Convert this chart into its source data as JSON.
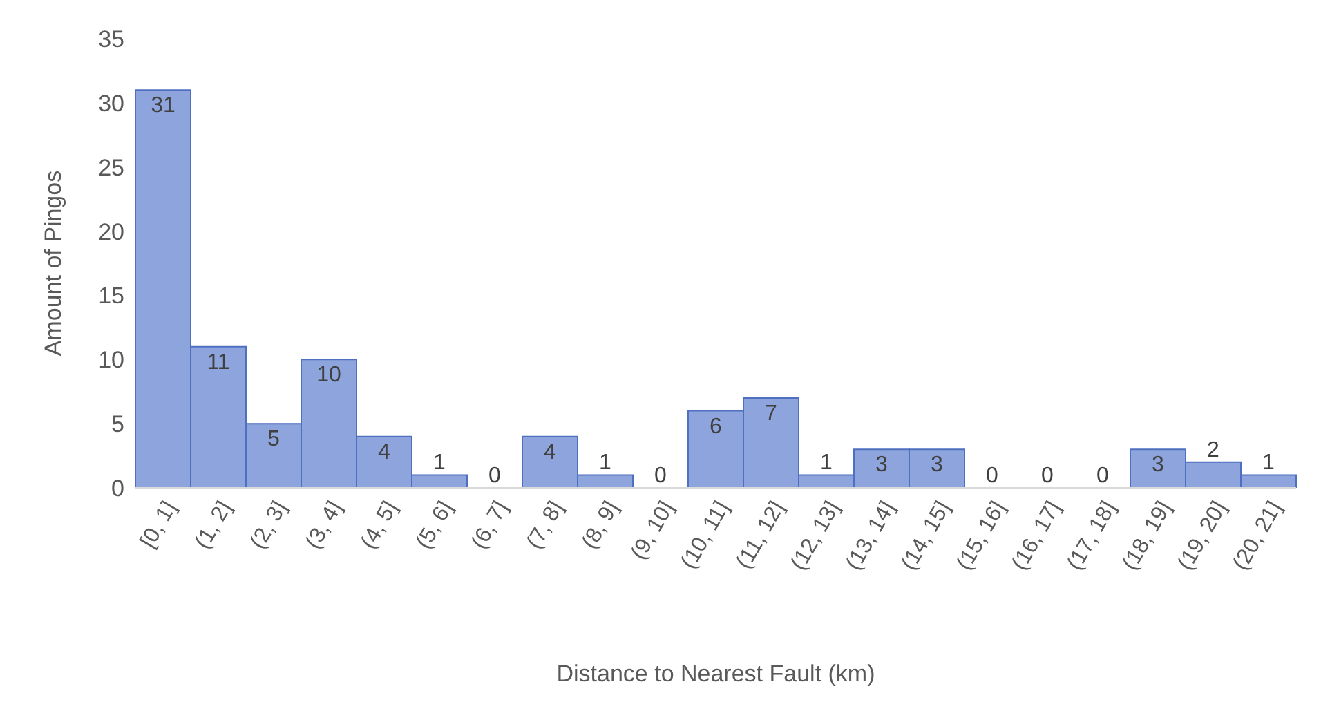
{
  "chart_data": {
    "type": "bar",
    "xlabel": "Distance to Nearest Fault (km)",
    "ylabel": "Amount of Pingos",
    "categories": [
      "[0, 1]",
      "(1, 2]",
      "(2, 3]",
      "(3, 4]",
      "(4, 5]",
      "(5, 6]",
      "(6, 7]",
      "(7, 8]",
      "(8, 9]",
      "(9, 10]",
      "(10, 11]",
      "(11, 12]",
      "(12, 13]",
      "(13, 14]",
      "(14, 15]",
      "(15, 16]",
      "(16, 17]",
      "(17, 18]",
      "(18, 19]",
      "(19, 20]",
      "(20, 21]"
    ],
    "values": [
      31,
      11,
      5,
      10,
      4,
      1,
      0,
      4,
      1,
      0,
      6,
      7,
      1,
      3,
      3,
      0,
      0,
      0,
      3,
      2,
      1
    ],
    "color": "#8ea4dc",
    "ylim": [
      0,
      35
    ],
    "yticks": [
      0,
      5,
      10,
      15,
      20,
      25,
      30,
      35
    ],
    "grid": false,
    "data_labels": true,
    "legend": false
  }
}
